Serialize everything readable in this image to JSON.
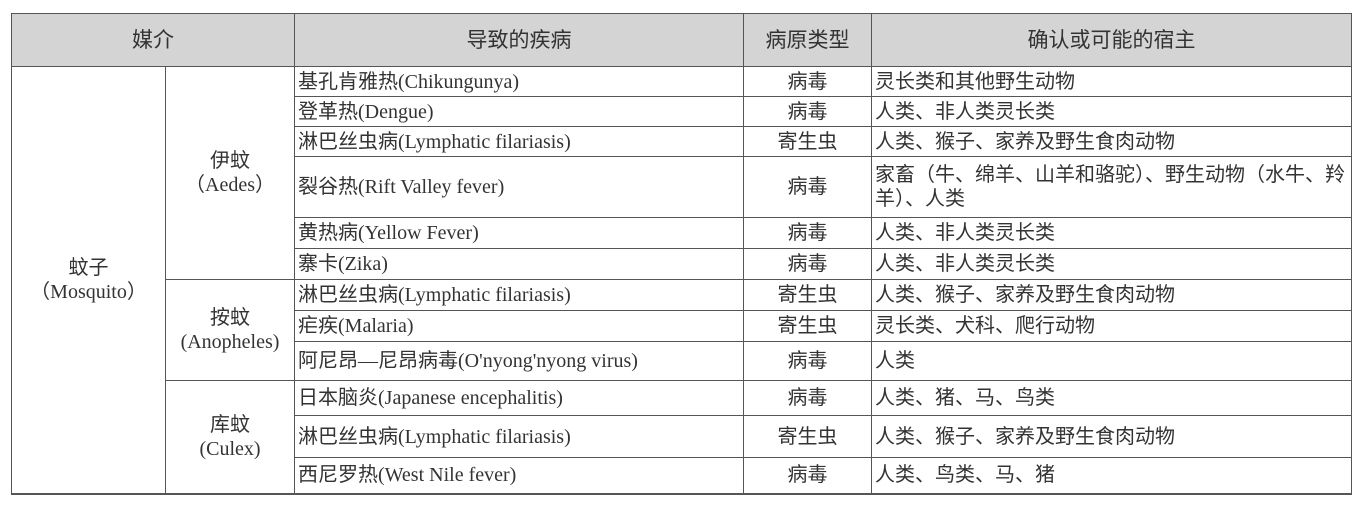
{
  "headers": {
    "vector": "媒介",
    "disease": "导致的疾病",
    "pathogen_type": "病原类型",
    "hosts": "确认或可能的宿主"
  },
  "vector": {
    "name": "蚊子",
    "latin": "（Mosquito）"
  },
  "genera": [
    {
      "name": "伊蚊",
      "latin": "（Aedes）",
      "rows": [
        {
          "disease": "基孔肯雅热(Chikungunya)",
          "type": "病毒",
          "hosts": "灵长类和其他野生动物"
        },
        {
          "disease": "登革热(Dengue)",
          "type": "病毒",
          "hosts": "人类、非人类灵长类"
        },
        {
          "disease": "淋巴丝虫病(Lymphatic filariasis)",
          "type": "寄生虫",
          "hosts": "人类、猴子、家养及野生食肉动物"
        },
        {
          "disease": "裂谷热(Rift Valley fever)",
          "type": "病毒",
          "hosts": "家畜（牛、绵羊、山羊和骆驼）、野生动物（水牛、羚羊）、人类"
        },
        {
          "disease": "黄热病(Yellow Fever)",
          "type": "病毒",
          "hosts": "人类、非人类灵长类"
        },
        {
          "disease": "寨卡(Zika)",
          "type": "病毒",
          "hosts": "人类、非人类灵长类"
        }
      ]
    },
    {
      "name": "按蚊",
      "latin": "(Anopheles)",
      "rows": [
        {
          "disease": "淋巴丝虫病(Lymphatic filariasis)",
          "type": "寄生虫",
          "hosts": "人类、猴子、家养及野生食肉动物"
        },
        {
          "disease": "疟疾(Malaria)",
          "type": "寄生虫",
          "hosts": "灵长类、犬科、爬行动物"
        },
        {
          "disease": "阿尼昂—尼昂病毒(O'nyong'nyong virus)",
          "type": "病毒",
          "hosts": "人类"
        }
      ]
    },
    {
      "name": "库蚊",
      "latin": "(Culex)",
      "rows": [
        {
          "disease": "日本脑炎(Japanese encephalitis)",
          "type": "病毒",
          "hosts": "人类、猪、马、鸟类"
        },
        {
          "disease": "淋巴丝虫病(Lymphatic filariasis)",
          "type": "寄生虫",
          "hosts": "人类、猴子、家养及野生食肉动物"
        },
        {
          "disease": "西尼罗热(West Nile fever)",
          "type": "病毒",
          "hosts": "人类、鸟类、马、猪"
        }
      ]
    }
  ]
}
